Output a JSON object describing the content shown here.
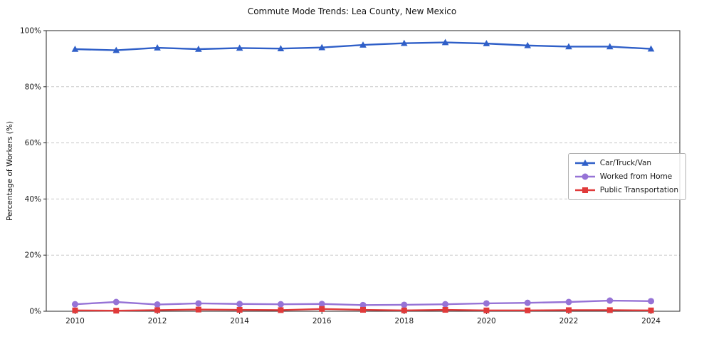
{
  "figure": {
    "title": "Commute Mode Trends: Lea County, New Mexico"
  },
  "chart_data": {
    "type": "line",
    "title": "Commute Mode Trends: Lea County, New Mexico",
    "xlabel": "",
    "ylabel": "Percentage of Workers (%)",
    "x": [
      2010,
      2011,
      2012,
      2013,
      2014,
      2015,
      2016,
      2017,
      2018,
      2019,
      2020,
      2021,
      2022,
      2023,
      2024
    ],
    "xticks": [
      2010,
      2012,
      2014,
      2016,
      2018,
      2020,
      2022,
      2024
    ],
    "ylim": [
      0,
      100
    ],
    "yticks": [
      0,
      20,
      40,
      60,
      80,
      100
    ],
    "ytick_suffix": "%",
    "grid": "horizontal-dashed",
    "legend_position": "center-right",
    "series": [
      {
        "name": "Car/Truck/Van",
        "color": "#2f5fc8",
        "marker": "triangle",
        "values": [
          93.4,
          93.0,
          93.9,
          93.4,
          93.8,
          93.6,
          94.0,
          94.9,
          95.5,
          95.8,
          95.4,
          94.7,
          94.3,
          94.3,
          93.5
        ]
      },
      {
        "name": "Worked from Home",
        "color": "#9673d6",
        "marker": "circle",
        "values": [
          2.5,
          3.3,
          2.4,
          2.8,
          2.6,
          2.5,
          2.6,
          2.2,
          2.3,
          2.5,
          2.8,
          3.0,
          3.3,
          3.8,
          3.6
        ]
      },
      {
        "name": "Public Transportation",
        "color": "#e03a3a",
        "marker": "square",
        "values": [
          0.3,
          0.2,
          0.4,
          0.6,
          0.5,
          0.4,
          0.8,
          0.5,
          0.3,
          0.5,
          0.3,
          0.3,
          0.4,
          0.4,
          0.3
        ]
      }
    ]
  }
}
